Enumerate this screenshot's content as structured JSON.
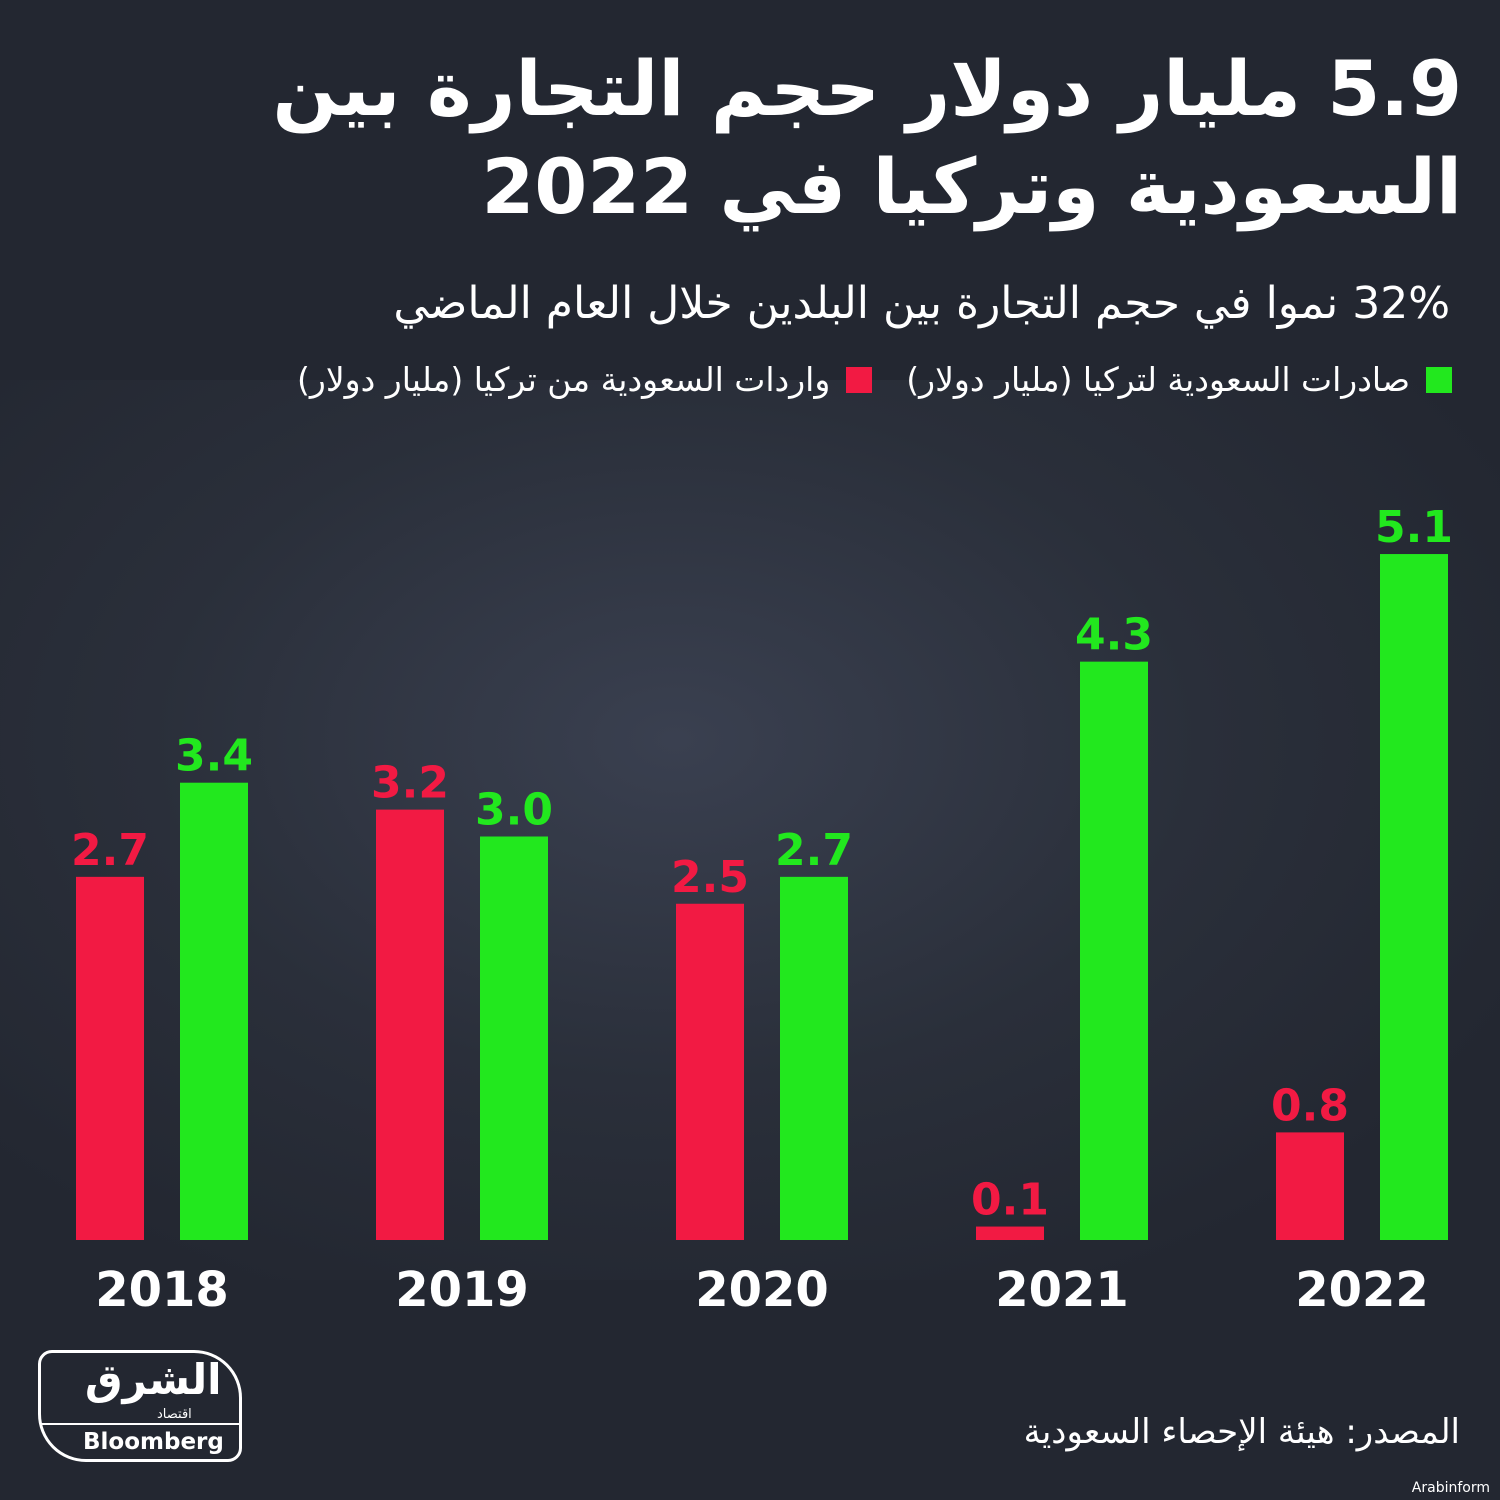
{
  "header": {
    "title": "5.9 مليار دولار حجم التجارة بين السعودية وتركيا  في 2022",
    "subtitle": "32% نموا في حجم التجارة بين البلدين خلال العام الماضي"
  },
  "colors": {
    "exports": "#22e81e",
    "imports": "#f21a43",
    "background": "#232731"
  },
  "chart_data": {
    "type": "bar",
    "categories": [
      "2018",
      "2019",
      "2020",
      "2021",
      "2022"
    ],
    "series": [
      {
        "name": "واردات السعودية من تركيا (مليار دولار)",
        "values": [
          2.7,
          3.2,
          2.5,
          0.1,
          0.8
        ],
        "labels": [
          "2.7",
          "3.2",
          "2.5",
          "0.1",
          "0.8"
        ]
      },
      {
        "name": "صادرات السعودية لتركيا (مليار دولار)",
        "values": [
          3.4,
          3.0,
          2.7,
          4.3,
          5.1
        ],
        "labels": [
          "3.4",
          "3.0",
          "2.7",
          "4.3",
          "5.1"
        ]
      }
    ],
    "ylim": [
      0,
      5.4
    ],
    "grid": false,
    "legend_position": "top-right"
  },
  "footer": {
    "source": "المصدر: هيئة الإحصاء السعودية",
    "logo_text": "الشرق",
    "logo_sub": "اقتصاد",
    "logo_with": "مع",
    "logo_brand": "Bloomberg",
    "credit": "Arabinform"
  }
}
